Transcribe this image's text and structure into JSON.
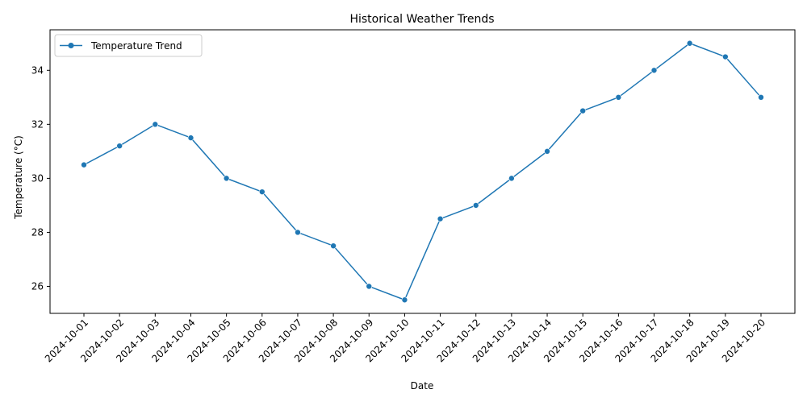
{
  "chart_data": {
    "type": "line",
    "title": "Historical Weather Trends",
    "xlabel": "Date",
    "ylabel": "Temperature (°C)",
    "x": [
      "2024-10-01",
      "2024-10-02",
      "2024-10-03",
      "2024-10-04",
      "2024-10-05",
      "2024-10-06",
      "2024-10-07",
      "2024-10-08",
      "2024-10-09",
      "2024-10-10",
      "2024-10-11",
      "2024-10-12",
      "2024-10-13",
      "2024-10-14",
      "2024-10-15",
      "2024-10-16",
      "2024-10-17",
      "2024-10-18",
      "2024-10-19",
      "2024-10-20"
    ],
    "series": [
      {
        "name": "Temperature Trend",
        "color": "#1f77b4",
        "marker": "circle",
        "values": [
          30.5,
          31.2,
          32.0,
          31.5,
          30.0,
          29.5,
          28.0,
          27.5,
          26.0,
          25.5,
          28.5,
          29.0,
          30.0,
          31.0,
          32.5,
          33.0,
          34.0,
          35.0,
          34.5,
          33.0
        ]
      }
    ],
    "ylim": [
      25.0,
      35.5
    ],
    "yticks": [
      26,
      28,
      30,
      32,
      34
    ],
    "grid": false,
    "legend_position": "upper-left",
    "x_tick_rotation": "45 degrees"
  }
}
